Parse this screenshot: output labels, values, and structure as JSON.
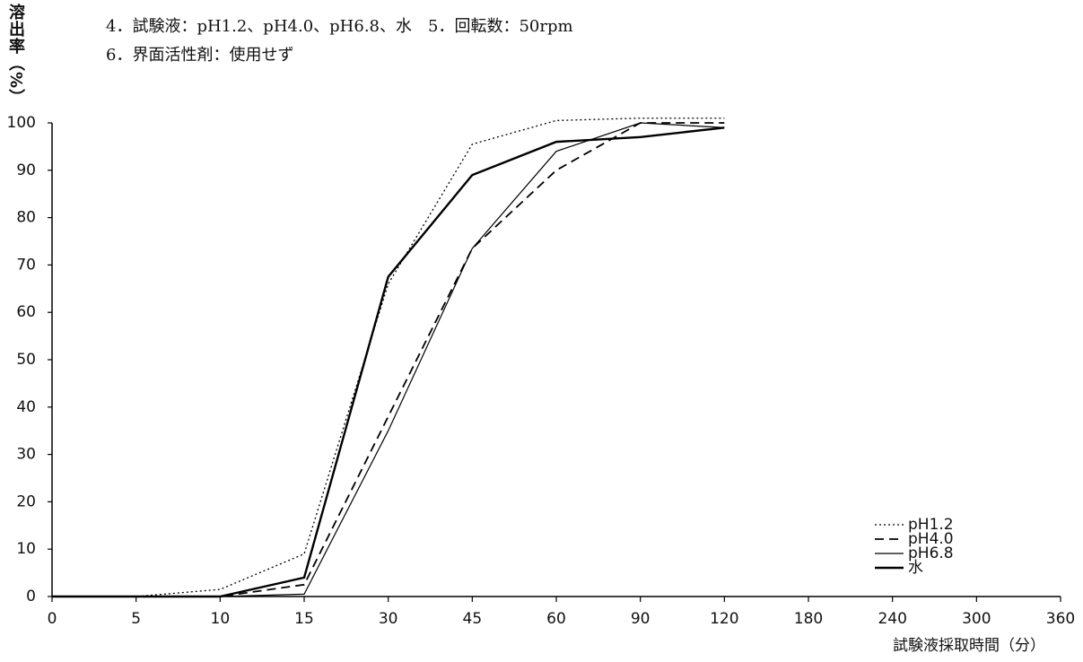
{
  "chart_data": {
    "type": "line",
    "notes": [
      "4．試験液：pH1.2、pH4.0、pH6.8、水　5．回転数：50rpm",
      "6．界面活性剤：使用せず"
    ],
    "y_label": "溶出率（%）",
    "x_label": "試験液採取時間（分）",
    "categories": [
      "0",
      "5",
      "10",
      "15",
      "30",
      "45",
      "60",
      "90",
      "120",
      "180",
      "240",
      "300",
      "360"
    ],
    "series": [
      {
        "name": "pH1.2",
        "color": "#000000",
        "dash": "2,3",
        "width": 1.3,
        "values": [
          0,
          0,
          1.5,
          9,
          66,
          95.5,
          100.5,
          101,
          101,
          null,
          null,
          null,
          null
        ]
      },
      {
        "name": "pH4.0",
        "color": "#000000",
        "dash": "10,6",
        "width": 1.8,
        "values": [
          0,
          0,
          0,
          2.5,
          38,
          73.5,
          90,
          100,
          100,
          null,
          null,
          null,
          null
        ]
      },
      {
        "name": "pH6.8",
        "color": "#000000",
        "dash": "none",
        "width": 1.2,
        "values": [
          0,
          0,
          0,
          0.5,
          35,
          73.5,
          94,
          100,
          99,
          null,
          null,
          null,
          null
        ]
      },
      {
        "name": "水",
        "color": "#000000",
        "dash": "none",
        "width": 2.4,
        "values": [
          0,
          0,
          0,
          4,
          67.5,
          89,
          96,
          97,
          99,
          null,
          null,
          null,
          null
        ]
      }
    ],
    "ylim": [
      0,
      100
    ],
    "yticks": [
      0,
      10,
      20,
      30,
      40,
      50,
      60,
      70,
      80,
      90,
      100
    ],
    "legend": "lower right"
  }
}
